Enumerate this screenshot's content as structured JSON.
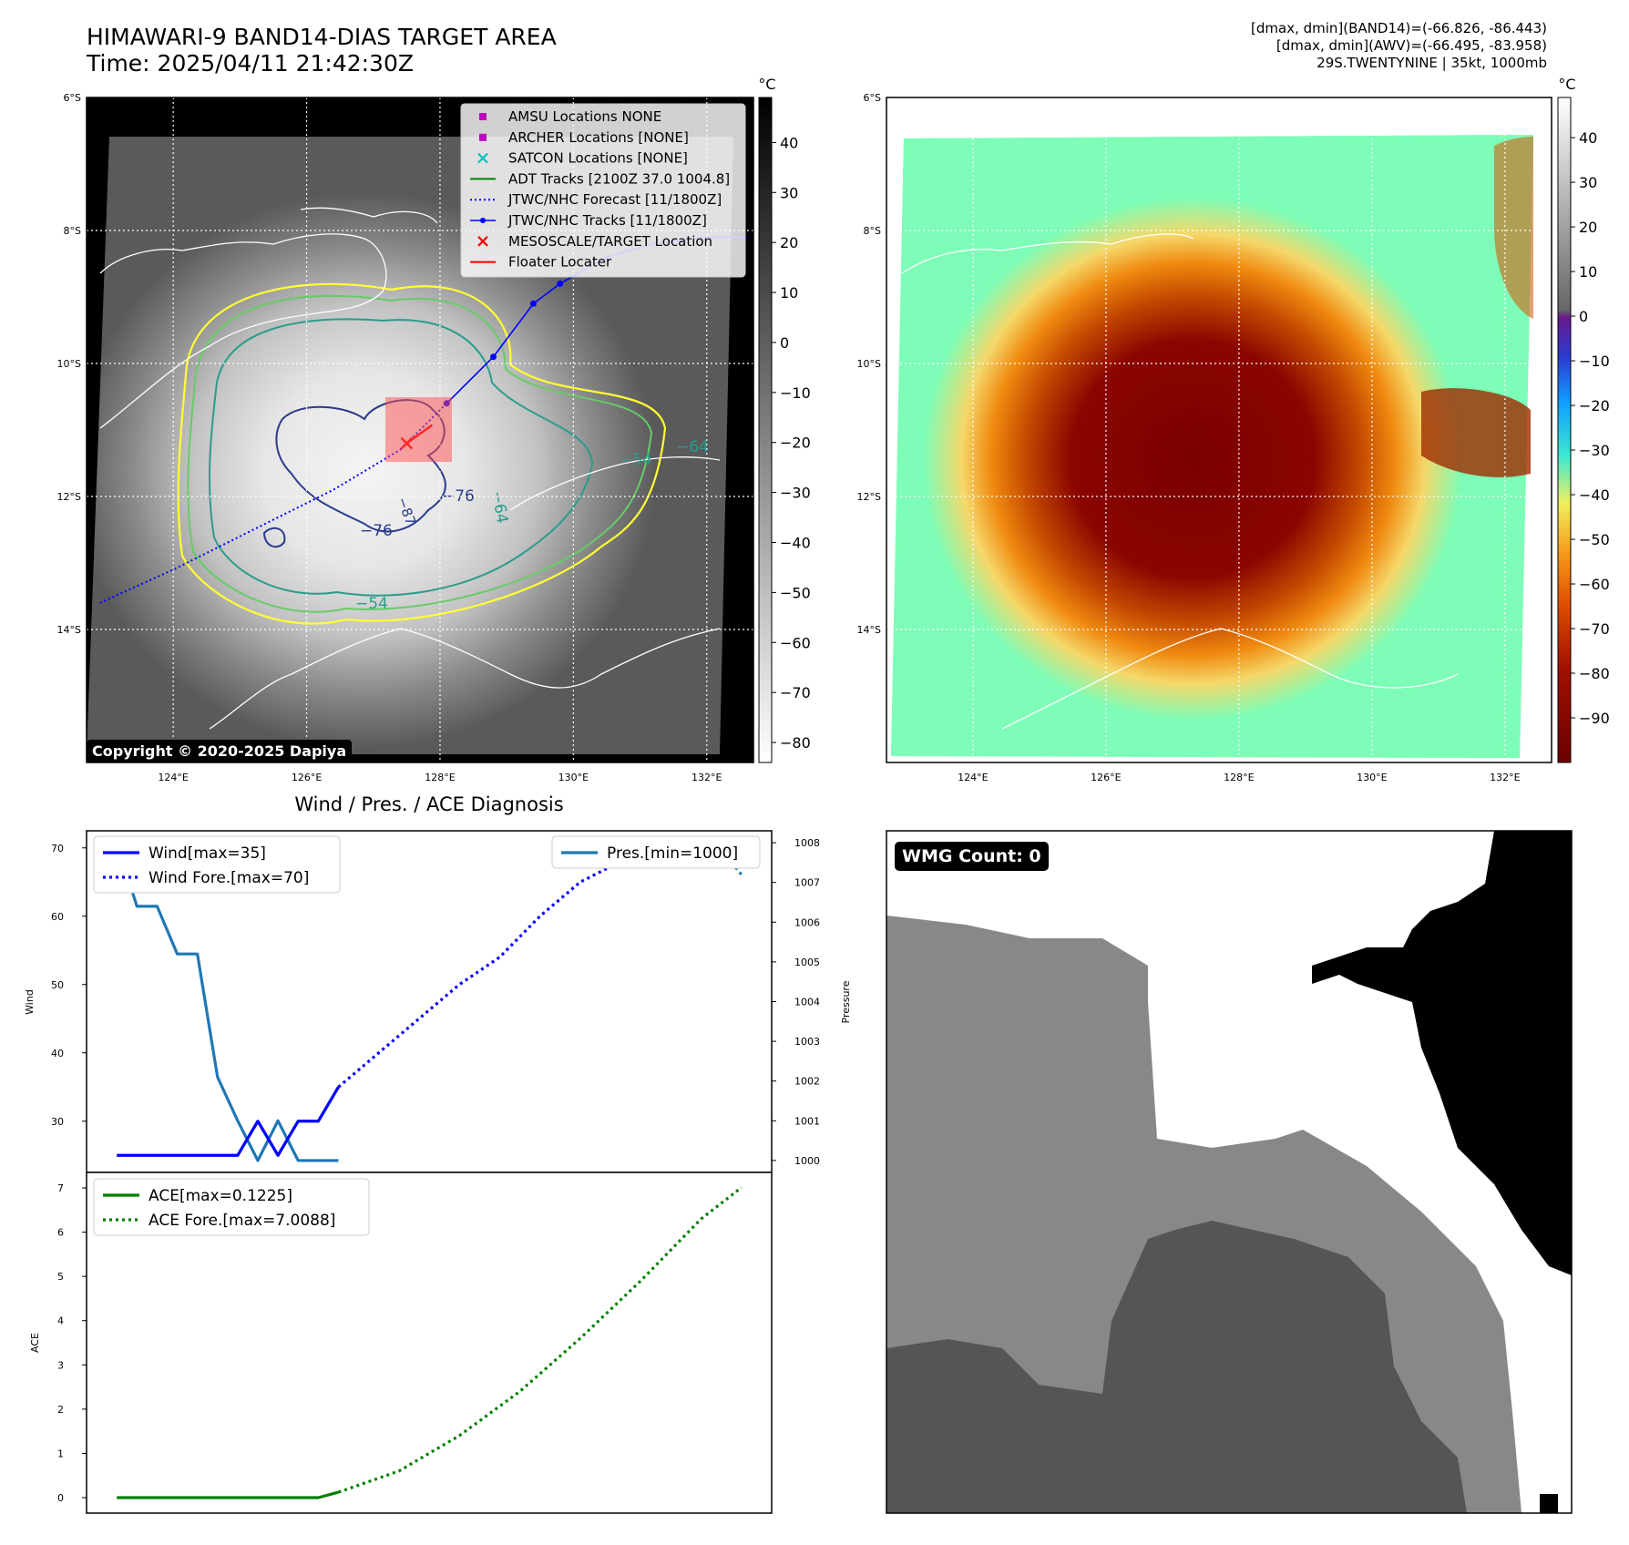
{
  "header": {
    "title_line1": "HIMAWARI-9 BAND14-DIAS TARGET AREA",
    "title_line2": "Time: 2025/04/11 21:42:30Z",
    "info_line1": "[dmax, dmin](BAND14)=(-66.826, -86.443)",
    "info_line2": "[dmax, dmin](AWV)=(-66.495, -83.958)",
    "info_line3": "29S.TWENTYNINE | 35kt, 1000mb"
  },
  "map": {
    "lat_labels": [
      "6°S",
      "8°S",
      "10°S",
      "12°S",
      "14°S"
    ],
    "lon_labels": [
      "124°E",
      "126°E",
      "128°E",
      "130°E",
      "132°E"
    ],
    "lat_values": [
      -6,
      -8,
      -10,
      -12,
      -14
    ],
    "lon_values": [
      124,
      126,
      128,
      130,
      132
    ],
    "copyright": "Copyright © 2020-2025 Dapiya",
    "contour_labels": [
      "−64",
      "−54",
      "−76",
      "−76",
      "−64",
      "−87",
      "−54"
    ],
    "legend": [
      {
        "label": "AMSU Locations NONE",
        "marker": "square",
        "color": "#c000c0"
      },
      {
        "label": "ARCHER Locations [NONE]",
        "marker": "square",
        "color": "#c000c0"
      },
      {
        "label": "SATCON Locations [NONE]",
        "marker": "x",
        "color": "#00bfbf"
      },
      {
        "label": "ADT Tracks [2100Z 37.0 1004.8]",
        "marker": "line",
        "color": "#008000"
      },
      {
        "label": "JTWC/NHC Forecast [11/1800Z]",
        "marker": "dotted",
        "color": "#0000ff"
      },
      {
        "label": "JTWC/NHC Tracks [11/1800Z]",
        "marker": "line-dot",
        "color": "#0000ff"
      },
      {
        "label": "MESOSCALE/TARGET Location",
        "marker": "x",
        "color": "#ff0000"
      },
      {
        "label": "Floater Locater",
        "marker": "line",
        "color": "#ff0000"
      }
    ],
    "track": {
      "jtwc_points": [
        [
          128.1,
          -10.6
        ],
        [
          128.8,
          -9.9
        ],
        [
          129.4,
          -9.1
        ],
        [
          129.8,
          -8.8
        ],
        [
          130.5,
          -8.4
        ],
        [
          131.2,
          -8.2
        ],
        [
          132.0,
          -8.1
        ],
        [
          132.6,
          -8.1
        ]
      ],
      "forecast_points": [
        [
          122.9,
          -13.6
        ],
        [
          124.0,
          -13.1
        ],
        [
          125.2,
          -12.5
        ],
        [
          126.4,
          -11.9
        ],
        [
          127.4,
          -11.3
        ],
        [
          128.1,
          -10.6
        ]
      ],
      "target": [
        127.5,
        -11.2
      ]
    }
  },
  "colorbar_gray": {
    "unit": "°C",
    "ticks": [
      "40",
      "30",
      "20",
      "10",
      "0",
      "−10",
      "−20",
      "−30",
      "−40",
      "−50",
      "−60",
      "−70",
      "−80"
    ],
    "values": [
      40,
      30,
      20,
      10,
      0,
      -10,
      -20,
      -30,
      -40,
      -50,
      -60,
      -70,
      -80
    ],
    "range": [
      -84,
      49
    ]
  },
  "colorbar_color": {
    "unit": "°C",
    "ticks": [
      "40",
      "30",
      "20",
      "10",
      "0",
      "−10",
      "−20",
      "−30",
      "−40",
      "−50",
      "−60",
      "−70",
      "−80",
      "−90"
    ],
    "values": [
      40,
      30,
      20,
      10,
      0,
      -10,
      -20,
      -30,
      -40,
      -50,
      -60,
      -70,
      -80,
      -90
    ],
    "range": [
      -100,
      49
    ]
  },
  "diagnosis": {
    "title": "Wind / Pres. / ACE Diagnosis",
    "wind_axis_label": "Wind",
    "pressure_axis_label": "Pressure",
    "ace_axis_label": "ACE",
    "wmg": "WMG Count: 0"
  },
  "chart_data": [
    {
      "type": "line",
      "title": "",
      "xlabel": "",
      "ylabel": "Wind",
      "ylim": [
        22.5,
        72.5
      ],
      "yticks": [
        30,
        40,
        50,
        60,
        70
      ],
      "legend_position": "top-left",
      "series": [
        {
          "name": "Wind[max=35]",
          "style": "solid",
          "color": "#0000ff",
          "x": [
            0,
            1,
            2,
            3,
            4,
            5,
            6,
            7,
            8,
            9,
            10,
            11
          ],
          "values": [
            25,
            25,
            25,
            25,
            25,
            25,
            25,
            30,
            25,
            30,
            30,
            35
          ]
        },
        {
          "name": "Wind Fore.[max=70]",
          "style": "dotted",
          "color": "#0000ff",
          "x": [
            11,
            13,
            15,
            17,
            19,
            21,
            23,
            25,
            27,
            29,
            31
          ],
          "values": [
            35,
            40,
            45,
            50,
            54,
            60,
            65,
            68,
            70,
            70,
            70
          ]
        }
      ]
    },
    {
      "type": "line",
      "title": "",
      "xlabel": "",
      "ylabel": "Pressure",
      "ylim": [
        999.7,
        1008.3
      ],
      "yticks": [
        1000,
        1001,
        1002,
        1003,
        1004,
        1005,
        1006,
        1007,
        1008
      ],
      "legend_position": "top-right",
      "series": [
        {
          "name": "Pres.[min=1000]",
          "style": "solid",
          "color": "#1f77b4",
          "x": [
            0,
            1,
            2,
            3,
            4,
            5,
            6,
            7,
            8,
            9,
            10,
            11
          ],
          "values": [
            1008,
            1006.4,
            1006.4,
            1005.2,
            1005.2,
            1002.1,
            1001,
            1000,
            1001,
            1000,
            1000,
            1000
          ]
        },
        {
          "name": "Pres. Fore.",
          "style": "dotted",
          "color": "#1f77b4",
          "x": [
            24,
            26,
            28,
            30,
            31
          ],
          "values": [
            1007.6,
            1008,
            1008,
            1007.8,
            1007.2
          ]
        }
      ]
    },
    {
      "type": "line",
      "title": "",
      "xlabel": "",
      "ylabel": "ACE",
      "ylim": [
        -0.35,
        7.35
      ],
      "yticks": [
        0,
        1,
        2,
        3,
        4,
        5,
        6,
        7
      ],
      "legend_position": "top-left",
      "series": [
        {
          "name": "ACE[max=0.1225]",
          "style": "solid",
          "color": "#008000",
          "x": [
            0,
            2,
            4,
            6,
            8,
            10,
            11
          ],
          "values": [
            0,
            0,
            0,
            0,
            0,
            0,
            0.1225
          ]
        },
        {
          "name": "ACE Fore.[max=7.0088]",
          "style": "dotted",
          "color": "#008000",
          "x": [
            11,
            14,
            17,
            20,
            23,
            26,
            29,
            31
          ],
          "values": [
            0.1225,
            0.6,
            1.4,
            2.4,
            3.6,
            4.9,
            6.3,
            7.0088
          ]
        }
      ]
    }
  ]
}
